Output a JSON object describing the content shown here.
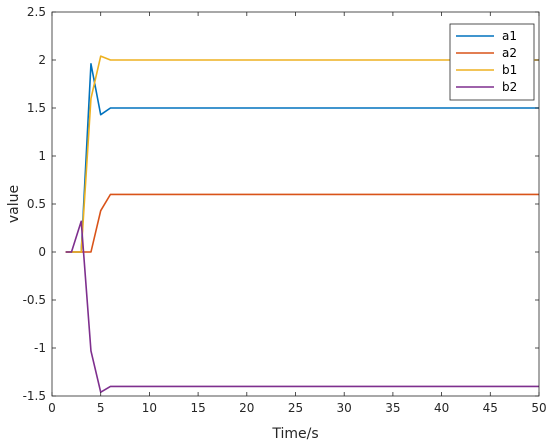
{
  "chart_data": {
    "type": "line",
    "title": "",
    "xlabel": "Time/s",
    "ylabel": "value",
    "xlim": [
      0,
      50
    ],
    "ylim": [
      -1.5,
      2.5
    ],
    "xticks": [
      "0",
      "5",
      "10",
      "15",
      "20",
      "25",
      "30",
      "35",
      "40",
      "45",
      "50"
    ],
    "yticks": [
      "-1.5",
      "-1",
      "-0.5",
      "0",
      "0.5",
      "1",
      "1.5",
      "2",
      "2.5"
    ],
    "grid": false,
    "legend_position": "top-right",
    "series": [
      {
        "name": "a1",
        "color": "#0072BD",
        "x": [
          1.4,
          3,
          4,
          5,
          6,
          50
        ],
        "y": [
          0,
          0,
          1.96,
          1.43,
          1.5,
          1.5
        ]
      },
      {
        "name": "a2",
        "color": "#D95319",
        "x": [
          1.4,
          4,
          5,
          6,
          50
        ],
        "y": [
          0,
          0,
          0.43,
          0.6,
          0.6
        ]
      },
      {
        "name": "b1",
        "color": "#EDB120",
        "x": [
          1.4,
          3,
          4,
          5,
          6,
          50
        ],
        "y": [
          0,
          0,
          1.6,
          2.04,
          2.0,
          2.0
        ]
      },
      {
        "name": "b2",
        "color": "#7E2F8E",
        "x": [
          1.4,
          2,
          3,
          4,
          5,
          6,
          50
        ],
        "y": [
          0,
          0,
          0.32,
          -1.03,
          -1.46,
          -1.4,
          -1.4
        ]
      }
    ]
  }
}
